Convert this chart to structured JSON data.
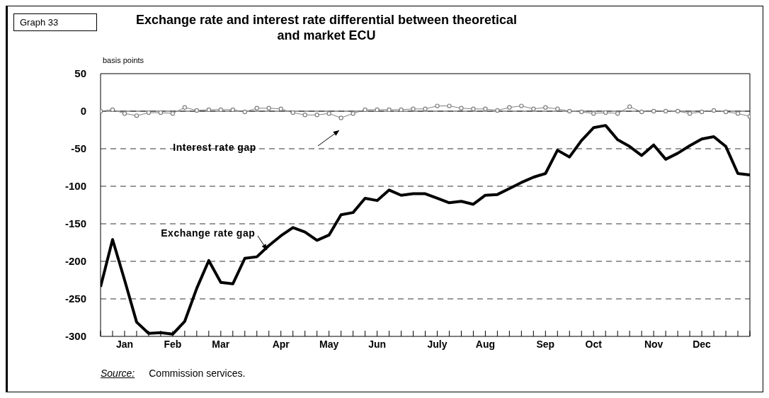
{
  "chart_data": {
    "type": "line",
    "title": "Exchange rate and interest rate differential between theoretical and market ECU",
    "ylabel": "basis points",
    "annotations": [
      "Graph 33",
      "Source: Commission services."
    ],
    "categories": [
      null,
      null,
      "Jan",
      null,
      null,
      null,
      "Feb",
      null,
      null,
      null,
      "Mar",
      null,
      null,
      null,
      null,
      "Apr",
      null,
      null,
      null,
      "May",
      null,
      null,
      null,
      "Jun",
      null,
      null,
      null,
      null,
      "July",
      null,
      null,
      null,
      "Aug",
      null,
      null,
      null,
      null,
      "Sep",
      null,
      null,
      null,
      "Oct",
      null,
      null,
      null,
      null,
      "Nov",
      null,
      null,
      null,
      "Dec",
      null,
      null,
      null,
      null
    ],
    "series": [
      {
        "name": "Interest rate gap",
        "color": "#808080",
        "marker": "circle",
        "values": [
          0,
          2,
          -3,
          -6,
          -2,
          -2,
          -3,
          5,
          1,
          2,
          2,
          2,
          -1,
          4,
          4,
          3,
          -2,
          -5,
          -5,
          -3,
          -9,
          -3,
          2,
          2,
          2,
          2,
          3,
          3,
          7,
          7,
          4,
          3,
          3,
          1,
          5,
          7,
          3,
          5,
          3,
          0,
          -1,
          -3,
          -2,
          -3,
          6,
          -1,
          0,
          0,
          0,
          -3,
          -1,
          1,
          -1,
          -3,
          -7
        ]
      },
      {
        "name": "Exchange rate gap",
        "color": "#000000",
        "marker": "none",
        "values": [
          -234,
          -171,
          -225,
          -281,
          -296,
          -295,
          -297,
          -280,
          -236,
          -199,
          -228,
          -230,
          -196,
          -194,
          -179,
          -166,
          -155,
          -161,
          -172,
          -165,
          -138,
          -135,
          -116,
          -119,
          -105,
          -112,
          -110,
          -110,
          -116,
          -122,
          -120,
          -124,
          -112,
          -111,
          -103,
          -95,
          -88,
          -83,
          -52,
          -61,
          -39,
          -22,
          -19,
          -38,
          -47,
          -59,
          -45,
          -64,
          -56,
          -46,
          -37,
          -34,
          -47,
          -83,
          -85
        ]
      }
    ],
    "ylim": [
      -300,
      50
    ],
    "yticks": [
      50,
      0,
      -50,
      -100,
      -150,
      -200,
      -250,
      -300
    ],
    "grid": "y",
    "ref_lines": [
      {
        "axis": "y",
        "value": 0,
        "color": "#000000",
        "line_style": "solid"
      }
    ]
  }
}
